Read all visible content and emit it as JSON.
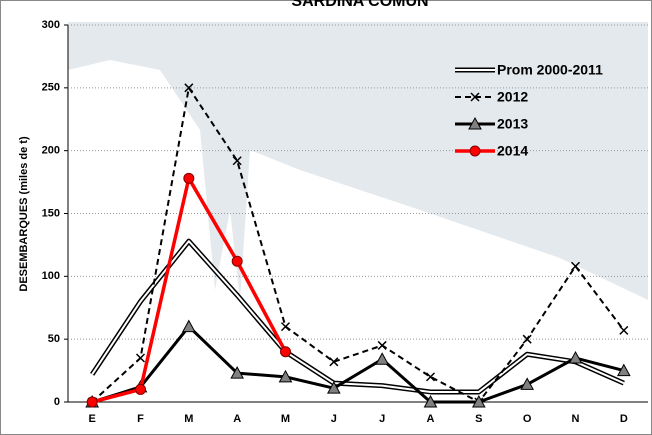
{
  "chart_data": {
    "type": "line",
    "title": "SARDINA COMUN",
    "y_label": "DESEMBARQUES   (miles de t)",
    "categories": [
      "E",
      "F",
      "M",
      "A",
      "M",
      "J",
      "J",
      "A",
      "S",
      "O",
      "N",
      "D"
    ],
    "ylim": [
      0,
      300
    ],
    "yticks": [
      0,
      50,
      100,
      150,
      200,
      250,
      300
    ],
    "grid": true,
    "series": [
      {
        "name": "Prom 2000-2011",
        "color": "#000000",
        "values": [
          22,
          80,
          128,
          85,
          40,
          15,
          13,
          8,
          8,
          38,
          32,
          15
        ]
      },
      {
        "name": "2012",
        "color": "#000000",
        "values": [
          0,
          35,
          250,
          192,
          60,
          32,
          45,
          20,
          0,
          50,
          108,
          57
        ]
      },
      {
        "name": "2013",
        "color": "#000000",
        "values": [
          0,
          12,
          60,
          23,
          20,
          11,
          34,
          0,
          0,
          14,
          35,
          25
        ]
      },
      {
        "name": "2014",
        "color": "#ff0000",
        "values": [
          0,
          10,
          178,
          112,
          40,
          null,
          null,
          null,
          null,
          null,
          null,
          null
        ]
      }
    ]
  }
}
